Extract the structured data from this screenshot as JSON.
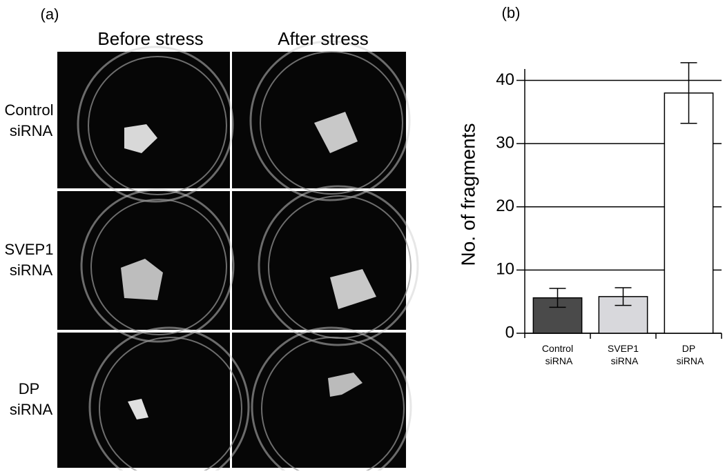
{
  "panel_a": {
    "label": "(a)",
    "columns": [
      "Before stress",
      "After stress"
    ],
    "rows": [
      "Control siRNA",
      "SVEP1 siRNA",
      "DP siRNA"
    ]
  },
  "chart_data": {
    "type": "bar",
    "panel_label": "(b)",
    "ylabel": "No. of fragments",
    "categories": [
      "Control siRNA",
      "SVEP1 siRNA",
      "DP siRNA"
    ],
    "values": [
      5.6,
      5.8,
      38.0
    ],
    "errors": [
      1.5,
      1.4,
      4.8
    ],
    "colors": [
      "#4a4a4a",
      "#d8d8dc",
      "#ffffff"
    ],
    "ylim": [
      0,
      43
    ],
    "yticks": [
      0,
      10,
      20,
      30,
      40
    ],
    "grid": true
  }
}
